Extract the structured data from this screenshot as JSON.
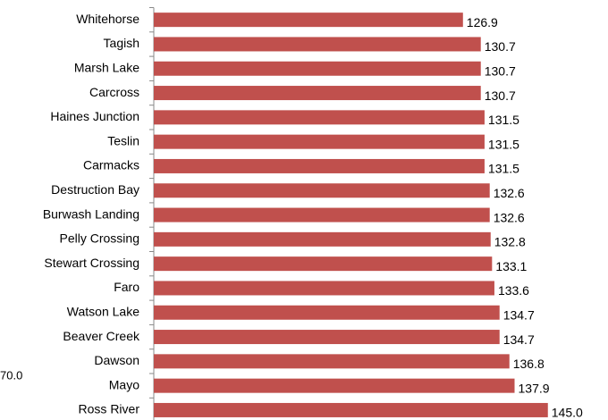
{
  "chart_data": {
    "type": "hbar",
    "categories": [
      "Whitehorse",
      "Tagish",
      "Marsh Lake",
      "Carcross",
      "Haines Junction",
      "Teslin",
      "Carmacks",
      "Destruction Bay",
      "Burwash Landing",
      "Pelly Crossing",
      "Stewart Crossing",
      "Faro",
      "Watson Lake",
      "Beaver Creek",
      "Dawson",
      "Mayo",
      "Ross River"
    ],
    "values": [
      126.9,
      130.7,
      130.7,
      130.7,
      131.5,
      131.5,
      131.5,
      132.6,
      132.6,
      132.8,
      133.1,
      133.6,
      134.7,
      134.7,
      136.8,
      137.9,
      145.0
    ],
    "value_labels": [
      "126.9",
      "130.7",
      "130.7",
      "130.7",
      "131.5",
      "131.5",
      "131.5",
      "132.6",
      "132.6",
      "132.8",
      "133.1",
      "133.6",
      "134.7",
      "134.7",
      "136.8",
      "137.9",
      "145.0"
    ],
    "color": "#c0504d",
    "xlim": [
      61,
      150
    ],
    "annotations": [
      "70.0"
    ]
  }
}
